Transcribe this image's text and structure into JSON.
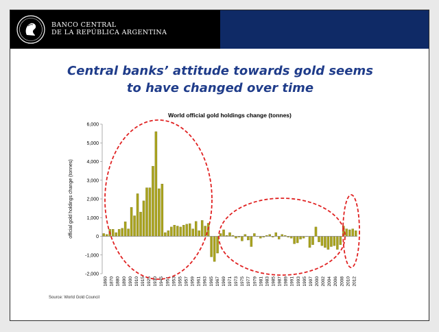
{
  "header": {
    "bank_name_line1": "BANCO CENTRAL",
    "bank_name_line2": "DE LA REPÚBLICA ARGENTINA",
    "left_color": "#000000",
    "right_color": "#0f2a66"
  },
  "slide": {
    "title_line1": "Central banks’ attitude towards gold seems",
    "title_line2": "to have changed over time",
    "source": "Source: World Gold Council"
  },
  "chart_data": {
    "type": "bar",
    "title": "World official gold holdings change (tonnes)",
    "ylabel": "official gold holdings change (tonnes)",
    "ylim": [
      -2000,
      6000
    ],
    "yticks": [
      -2000,
      -1000,
      0,
      1000,
      2000,
      3000,
      4000,
      5000,
      6000
    ],
    "ytick_labels": [
      "-2,000",
      "-1,000",
      "0",
      "1,000",
      "2,000",
      "3,000",
      "4,000",
      "5,000",
      "6,000"
    ],
    "x_tick_labels": [
      "1860",
      "1870",
      "1880",
      "1890",
      "1900",
      "1910",
      "1915",
      "1925",
      "1930",
      "1945",
      "1951",
      "1953",
      "1955",
      "1957",
      "1959",
      "1961",
      "1963",
      "1965",
      "1967",
      "1969",
      "1971",
      "1973",
      "1975",
      "1977",
      "1979",
      "1981",
      "1983",
      "1985",
      "1987",
      "1989",
      "1991",
      "1993",
      "1995",
      "1997",
      "2000",
      "2002",
      "2004",
      "2006",
      "2008",
      "2010",
      "2012"
    ],
    "bar_color": "#a9a31e",
    "values": [
      150,
      100,
      380,
      380,
      200,
      380,
      430,
      780,
      400,
      1550,
      1100,
      2280,
      1300,
      1900,
      2600,
      2600,
      3750,
      5600,
      2550,
      2800,
      200,
      300,
      500,
      600,
      550,
      500,
      600,
      650,
      680,
      400,
      800,
      300,
      850,
      550,
      700,
      -1100,
      -1350,
      -900,
      150,
      350,
      50,
      200,
      50,
      -100,
      -50,
      -250,
      100,
      -200,
      -550,
      150,
      0,
      -100,
      -50,
      50,
      100,
      -50,
      200,
      -150,
      100,
      50,
      -50,
      -100,
      -400,
      -350,
      -150,
      -100,
      0,
      -600,
      -450,
      500,
      -300,
      -500,
      -600,
      -700,
      -550,
      -500,
      -700,
      -450,
      550,
      400,
      350,
      400,
      300
    ],
    "grid": false,
    "legend": "none"
  },
  "annotations": {
    "ellipse_color": "#e02020"
  }
}
